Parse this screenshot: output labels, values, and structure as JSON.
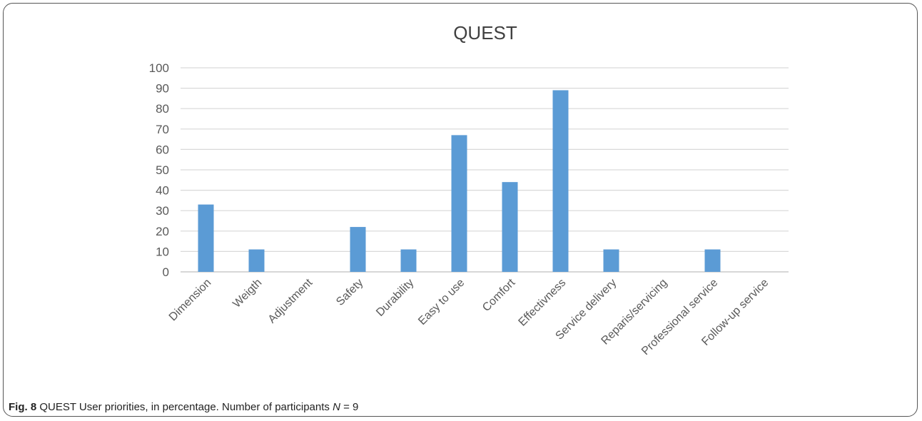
{
  "figure": {
    "label": "Fig. 8",
    "caption_text": " QUEST User priorities, in percentage. Number of participants ",
    "caption_var": "N",
    "caption_tail": " = 9"
  },
  "colors": {
    "bar": "#5b9bd5",
    "grid": "#d9d9d9",
    "text": "#595959",
    "title": "#404040"
  },
  "chart_data": {
    "type": "bar",
    "title": "QUEST",
    "xlabel": "",
    "ylabel": "",
    "ylim": [
      0,
      100
    ],
    "yticks": [
      0,
      10,
      20,
      30,
      40,
      50,
      60,
      70,
      80,
      90,
      100
    ],
    "grid": true,
    "legend": "none",
    "categories": [
      "Dimension",
      "Weigth",
      "Adjustment",
      "Safety",
      "Durability",
      "Easy to use",
      "Comfort",
      "Effectivness",
      "Service delivery",
      "Reparis/servicing",
      "Professional service",
      "Follow-up service"
    ],
    "values": [
      33,
      11,
      0,
      22,
      11,
      67,
      44,
      89,
      11,
      0,
      11,
      0
    ]
  }
}
